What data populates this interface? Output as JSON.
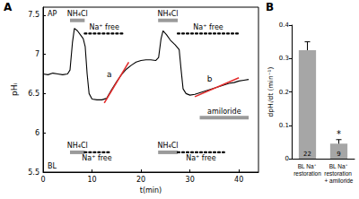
{
  "chart_data": [
    {
      "type": "line",
      "panel": "A",
      "xlabel": "t(min)",
      "ylabel": "pHᵢ",
      "color": "#000000",
      "x": [
        0,
        1,
        2,
        3,
        4,
        5,
        5.5,
        6,
        6.4,
        7,
        7.6,
        8.2,
        8.6,
        9,
        9.4,
        10,
        11,
        12,
        13,
        14,
        15,
        16,
        17,
        18,
        19,
        20,
        21,
        22,
        23,
        23.6,
        24.1,
        24.5,
        25.2,
        26,
        27,
        27.8,
        28.2,
        28.6,
        29.2,
        30,
        31,
        32,
        33,
        34,
        35,
        36,
        37,
        38,
        39,
        40,
        41,
        42
      ],
      "values": [
        6.75,
        6.74,
        6.76,
        6.75,
        6.74,
        6.75,
        6.8,
        7.15,
        7.33,
        7.3,
        7.25,
        7.2,
        7.1,
        6.75,
        6.5,
        6.43,
        6.42,
        6.42,
        6.44,
        6.55,
        6.65,
        6.74,
        6.81,
        6.86,
        6.9,
        6.92,
        6.93,
        6.93,
        6.92,
        6.96,
        7.2,
        7.3,
        7.25,
        7.18,
        7.12,
        7.06,
        6.8,
        6.56,
        6.5,
        6.48,
        6.49,
        6.51,
        6.53,
        6.55,
        6.57,
        6.59,
        6.61,
        6.63,
        6.64,
        6.66,
        6.67,
        6.68
      ],
      "xlim": [
        0,
        44
      ],
      "xticks": [
        0,
        10,
        20,
        30,
        40
      ],
      "ylim": [
        5.5,
        7.6
      ],
      "yticks": [
        5.5,
        6,
        6.5,
        7,
        7.5
      ],
      "grid": false,
      "fits": [
        {
          "label": "a",
          "x": [
            12.5,
            17.5
          ],
          "values": [
            6.38,
            6.9
          ],
          "color": "#e32b2b"
        },
        {
          "label": "b",
          "x": [
            31,
            40
          ],
          "values": [
            6.46,
            6.7
          ],
          "color": "#e32b2b"
        }
      ],
      "annotation_groups": [
        {
          "label": "AP",
          "items": [
            {
              "label": "NH₄Cl",
              "start": 5.5,
              "end": 8.5,
              "line_style": "solid"
            },
            {
              "label": "Na⁺ free",
              "start": 8.5,
              "end": 16.5,
              "line_style": "dotted"
            },
            {
              "label": "NH₄Cl",
              "start": 23.5,
              "end": 27.5,
              "line_style": "solid"
            },
            {
              "label": "Na⁺ free",
              "start": 27.5,
              "end": 40,
              "line_style": "dotted"
            }
          ]
        },
        {
          "label": "BL",
          "items": [
            {
              "label": "NH₄Cl",
              "start": 5.5,
              "end": 8.5,
              "line_style": "solid"
            },
            {
              "label": "Na⁺ free",
              "start": 8.5,
              "end": 13.5,
              "line_style": "dotted"
            },
            {
              "label": "NH₄Cl",
              "start": 23.5,
              "end": 27.5,
              "line_style": "solid"
            },
            {
              "label": "Na⁺ free",
              "start": 27.5,
              "end": 37,
              "line_style": "dotted"
            },
            {
              "label": "amiloride",
              "start": 32,
              "end": 42,
              "line_style": "solid"
            }
          ]
        }
      ]
    },
    {
      "type": "bar",
      "panel": "B",
      "ylabel": "dpHᵢ/dt (min⁻¹)",
      "color": "#a6a6a6",
      "categories": [
        "BL Na⁺ restoration",
        "BL Na⁺ restoration + amiloride"
      ],
      "values": [
        0.325,
        0.045
      ],
      "errors": [
        0.025,
        0.012
      ],
      "n": [
        22,
        9
      ],
      "significance": [
        null,
        "*"
      ],
      "ylim": [
        0,
        0.4
      ],
      "yticks": [
        0,
        0.1,
        0.2,
        0.3,
        0.4
      ],
      "grid": false
    }
  ]
}
